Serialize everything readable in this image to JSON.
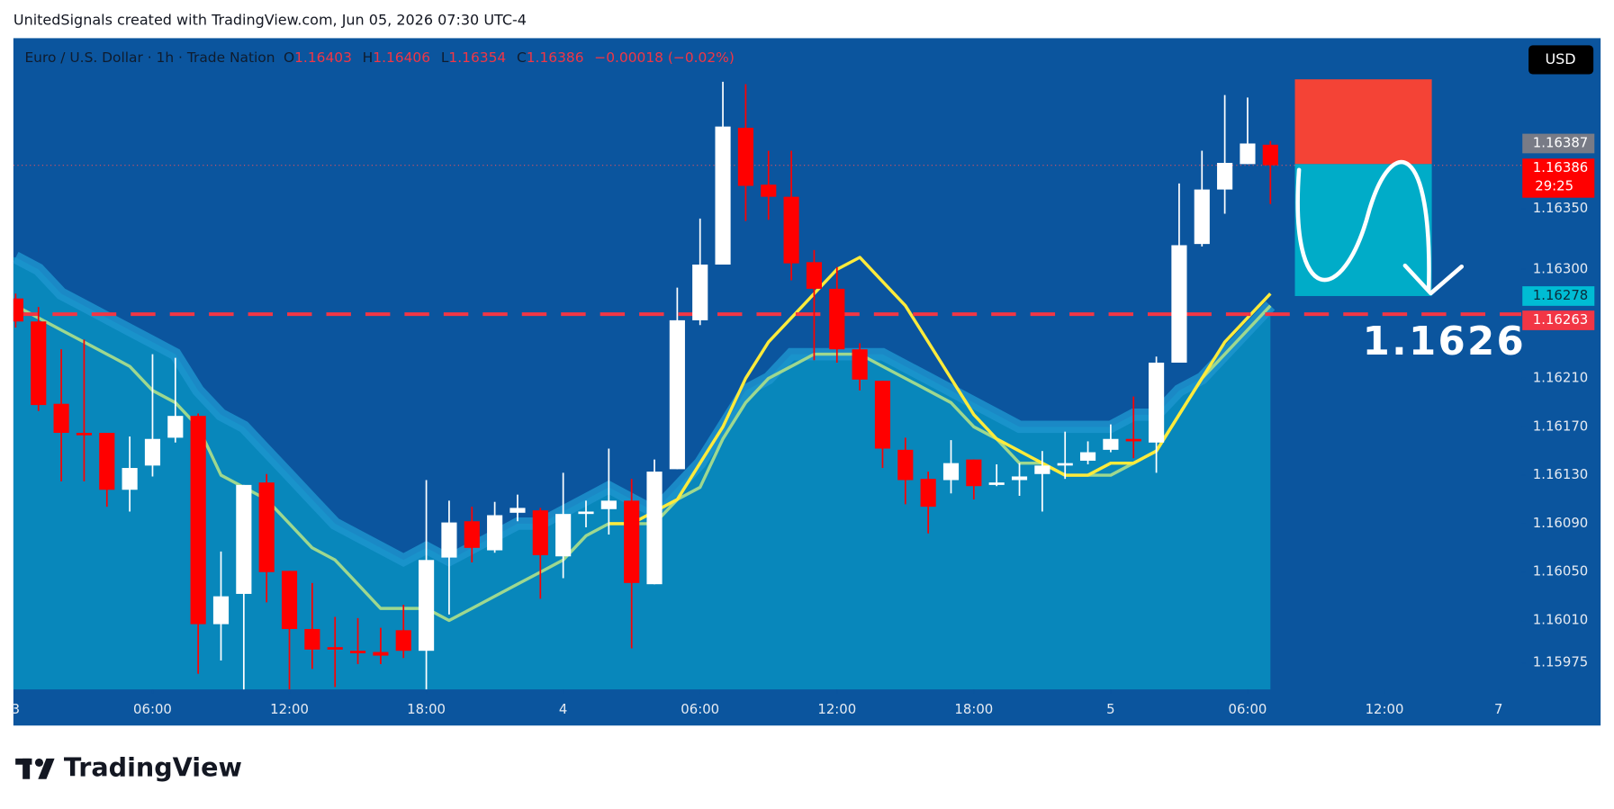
{
  "header": "UnitedSignals created with TradingView.com, Jun 05, 2026 07:30 UTC-4",
  "footer": "TradingView",
  "currency": "USD",
  "chart_data": {
    "type": "candlestick",
    "legend": {
      "symbol": "Euro / U.S. Dollar · 1h · Trade Nation",
      "keys": [
        "O",
        "H",
        "L",
        "C"
      ],
      "change": "−0.00018 (−0.02%)"
    },
    "up_color": "#ffffff",
    "down_color": "#ff0000",
    "candles": [
      [
        1.16276,
        1.1628,
        1.16252,
        1.16257
      ],
      [
        1.16257,
        1.16269,
        1.16183,
        1.16188
      ],
      [
        1.16189,
        1.16234,
        1.16125,
        1.16165
      ],
      [
        1.16165,
        1.16242,
        1.16125,
        1.16163
      ],
      [
        1.16165,
        1.16165,
        1.16104,
        1.16118
      ],
      [
        1.16118,
        1.16162,
        1.161,
        1.16136
      ],
      [
        1.16138,
        1.1623,
        1.16129,
        1.1616
      ],
      [
        1.16161,
        1.16227,
        1.16157,
        1.16179
      ],
      [
        1.16179,
        1.16181,
        1.15966,
        1.16007
      ],
      [
        1.16007,
        1.16067,
        1.15977,
        1.1603
      ],
      [
        1.16032,
        1.16122,
        1.15953,
        1.16122
      ],
      [
        1.16124,
        1.16131,
        1.16025,
        1.1605
      ],
      [
        1.16051,
        1.16051,
        1.15953,
        1.16003
      ],
      [
        1.16003,
        1.16041,
        1.1597,
        1.15986
      ],
      [
        1.15988,
        1.16013,
        1.15955,
        1.15986
      ],
      [
        1.15985,
        1.16012,
        1.15974,
        1.15983
      ],
      [
        1.15984,
        1.16004,
        1.15974,
        1.15981
      ],
      [
        1.16002,
        1.16023,
        1.15979,
        1.15985
      ],
      [
        1.15985,
        1.16126,
        1.15953,
        1.1606
      ],
      [
        1.16062,
        1.16109,
        1.16015,
        1.16091
      ],
      [
        1.16092,
        1.16104,
        1.16058,
        1.1607
      ],
      [
        1.16068,
        1.16108,
        1.16066,
        1.16097
      ],
      [
        1.16099,
        1.16114,
        1.16092,
        1.16103
      ],
      [
        1.16101,
        1.16103,
        1.16028,
        1.16064
      ],
      [
        1.16063,
        1.16132,
        1.16045,
        1.16098
      ],
      [
        1.16098,
        1.16109,
        1.16087,
        1.161
      ],
      [
        1.16102,
        1.16152,
        1.16081,
        1.16109
      ],
      [
        1.16109,
        1.16127,
        1.15987,
        1.16041
      ],
      [
        1.1604,
        1.16143,
        1.1604,
        1.16133
      ],
      [
        1.16135,
        1.16285,
        1.16135,
        1.16258
      ],
      [
        1.16258,
        1.16342,
        1.16254,
        1.16304
      ],
      [
        1.16304,
        1.16455,
        1.16304,
        1.16418
      ],
      [
        1.16417,
        1.16453,
        1.1634,
        1.16369
      ],
      [
        1.1637,
        1.16398,
        1.16341,
        1.1636
      ],
      [
        1.1636,
        1.16398,
        1.16291,
        1.16305
      ],
      [
        1.16306,
        1.16316,
        1.16225,
        1.16284
      ],
      [
        1.16284,
        1.16302,
        1.16223,
        1.16234
      ],
      [
        1.16234,
        1.16239,
        1.162,
        1.16209
      ],
      [
        1.16208,
        1.16208,
        1.16136,
        1.16152
      ],
      [
        1.16151,
        1.16161,
        1.16106,
        1.16126
      ],
      [
        1.16127,
        1.16133,
        1.16082,
        1.16104
      ],
      [
        1.16126,
        1.16159,
        1.16115,
        1.1614
      ],
      [
        1.16143,
        1.16143,
        1.1611,
        1.16121
      ],
      [
        1.16122,
        1.16139,
        1.16121,
        1.16124
      ],
      [
        1.16126,
        1.1614,
        1.16113,
        1.16129
      ],
      [
        1.16131,
        1.1615,
        1.161,
        1.16138
      ],
      [
        1.16138,
        1.16166,
        1.16127,
        1.1614
      ],
      [
        1.16142,
        1.16158,
        1.16139,
        1.16149
      ],
      [
        1.16151,
        1.16172,
        1.16149,
        1.1616
      ],
      [
        1.1616,
        1.16195,
        1.16144,
        1.16158
      ],
      [
        1.16157,
        1.16228,
        1.16132,
        1.16223
      ],
      [
        1.16223,
        1.16371,
        1.16223,
        1.1632
      ],
      [
        1.16321,
        1.16398,
        1.16319,
        1.16366
      ],
      [
        1.16366,
        1.16444,
        1.16346,
        1.16388
      ],
      [
        1.16387,
        1.16442,
        1.16387,
        1.16404
      ],
      [
        1.16403,
        1.16406,
        1.16354,
        1.16386
      ]
    ],
    "series": [
      {
        "color": "#1e96cf",
        "area": true,
        "fill": "#0887bb",
        "values": [
          1.1631,
          1.163,
          1.1628,
          1.1627,
          1.1626,
          1.1625,
          1.1624,
          1.1623,
          1.162,
          1.1618,
          1.1617,
          1.1615,
          1.1613,
          1.1611,
          1.1609,
          1.1608,
          1.1607,
          1.1606,
          1.1607,
          1.1606,
          1.1607,
          1.1608,
          1.1609,
          1.1609,
          1.161,
          1.1611,
          1.1612,
          1.1611,
          1.161,
          1.1612,
          1.1614,
          1.1617,
          1.162,
          1.1621,
          1.1623,
          1.1623,
          1.1623,
          1.1623,
          1.1623,
          1.1622,
          1.1621,
          1.162,
          1.1619,
          1.1618,
          1.1617,
          1.1617,
          1.1617,
          1.1617,
          1.1617,
          1.1618,
          1.1618,
          1.162,
          1.1621,
          1.1623,
          1.1625,
          1.1627
        ]
      },
      {
        "color": "#9ed88f",
        "values": [
          1.1627,
          1.1626,
          1.1625,
          1.1624,
          1.1623,
          1.1622,
          1.162,
          1.1619,
          1.1617,
          1.1613,
          1.1612,
          1.1611,
          1.1609,
          1.1607,
          1.1606,
          1.1604,
          1.1602,
          1.1602,
          1.1602,
          1.1601,
          1.1602,
          1.1603,
          1.1604,
          1.1605,
          1.1606,
          1.1608,
          1.1609,
          1.1609,
          1.1609,
          1.1611,
          1.1612,
          1.1616,
          1.1619,
          1.1621,
          1.1622,
          1.1623,
          1.1623,
          1.1623,
          1.1622,
          1.1621,
          1.162,
          1.1619,
          1.1617,
          1.1616,
          1.1614,
          1.1614,
          1.1613,
          1.1613,
          1.1613,
          1.1614,
          1.1615,
          1.1618,
          1.1621,
          1.1623,
          1.1625,
          1.1627
        ]
      },
      {
        "color": "#ffeb3b",
        "values": [
          null,
          null,
          null,
          null,
          null,
          null,
          null,
          null,
          null,
          null,
          null,
          null,
          null,
          null,
          null,
          null,
          null,
          null,
          null,
          null,
          null,
          null,
          null,
          null,
          null,
          null,
          1.1609,
          1.1609,
          1.161,
          1.1611,
          1.1614,
          1.1617,
          1.1621,
          1.1624,
          1.1626,
          1.1628,
          1.163,
          1.1631,
          1.1629,
          1.1627,
          1.1624,
          1.1621,
          1.1618,
          1.1616,
          1.1615,
          1.1614,
          1.1613,
          1.1613,
          1.1614,
          1.1614,
          1.1615,
          1.1618,
          1.1621,
          1.1624,
          1.1626,
          1.1628
        ]
      }
    ],
    "position": {
      "stop": 1.16457,
      "entry": 1.16387,
      "target": 1.16278,
      "stop_color": "#f44336",
      "target_color": "#00acc8"
    },
    "level": {
      "value": 1.16263,
      "color": "#f23645",
      "annotation": "1.1626"
    },
    "price_labels": [
      {
        "value": 1.16387,
        "label": "1.16387",
        "color": "#787b86"
      },
      {
        "value": 1.16386,
        "label": "1.16386",
        "color": "#ff0000",
        "countdown": "29:25"
      },
      {
        "value": 1.16278,
        "label": "1.16278",
        "color": "#00bcd4"
      },
      {
        "value": 1.16263,
        "label": "1.16263",
        "color": "#f23645"
      }
    ],
    "xlim": [
      -0.1,
      66
    ],
    "xticks": [
      {
        "value": 0,
        "label": "3"
      },
      {
        "value": 6,
        "label": "06:00"
      },
      {
        "value": 12,
        "label": "12:00"
      },
      {
        "value": 18,
        "label": "18:00"
      },
      {
        "value": 24,
        "label": "4"
      },
      {
        "value": 30,
        "label": "06:00"
      },
      {
        "value": 36,
        "label": "12:00"
      },
      {
        "value": 42,
        "label": "18:00"
      },
      {
        "value": 48,
        "label": "5"
      },
      {
        "value": 54,
        "label": "06:00"
      },
      {
        "value": 60,
        "label": "12:00"
      },
      {
        "value": 65,
        "label": "7"
      }
    ],
    "ylim": [
      1.15953,
      1.16491
    ],
    "yticks": [
      {
        "value": 1.1635,
        "label": "1.16350"
      },
      {
        "value": 1.163,
        "label": "1.16300"
      },
      {
        "value": 1.1621,
        "label": "1.16210"
      },
      {
        "value": 1.1617,
        "label": "1.16170"
      },
      {
        "value": 1.1613,
        "label": "1.16130"
      },
      {
        "value": 1.1609,
        "label": "1.16090"
      },
      {
        "value": 1.1605,
        "label": "1.16050"
      },
      {
        "value": 1.1601,
        "label": "1.16010"
      },
      1.15975
    ],
    "grid": false
  }
}
